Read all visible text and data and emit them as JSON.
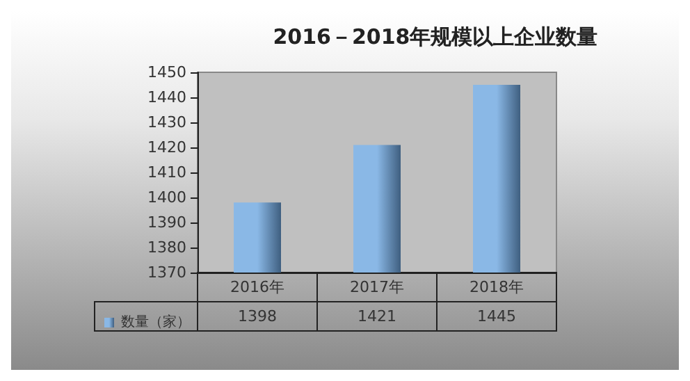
{
  "chart_data": {
    "type": "bar",
    "title": "2016－2018年规模以上企业数量",
    "categories": [
      "2016年",
      "2017年",
      "2018年"
    ],
    "series": [
      {
        "name": "数量（家）",
        "color": "#8ab8e6",
        "values": [
          1398,
          1421,
          1445
        ]
      }
    ],
    "ylim": [
      1370,
      1450
    ],
    "yticks": [
      1370,
      1380,
      1390,
      1400,
      1410,
      1420,
      1430,
      1440,
      1450
    ],
    "grid": false,
    "legend": "bottom left",
    "data_labels": true
  }
}
